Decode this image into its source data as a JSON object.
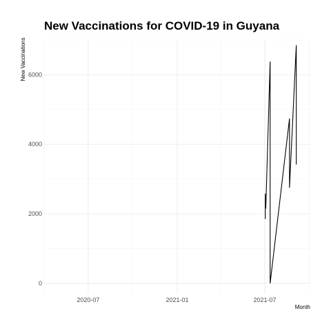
{
  "chart_data": {
    "type": "line",
    "title": "New Vaccinations for COVID-19 in Guyana",
    "xlabel": "Month",
    "ylabel": "New Vaccinations",
    "x_axis_type": "date",
    "xlim": [
      "2020-04-01",
      "2021-10-03"
    ],
    "ylim": [
      -300,
      7000
    ],
    "x_ticks": [
      "2020-07",
      "2021-01",
      "2021-07"
    ],
    "y_ticks": [
      0,
      2000,
      4000,
      6000
    ],
    "grid": true,
    "legend": "none",
    "line_color": "#000000",
    "series": [
      {
        "points": [
          {
            "x": "2021-07-02",
            "y": 1850
          },
          {
            "x": "2021-07-02",
            "y": 2580
          },
          {
            "x": "2021-07-02",
            "y": 2350
          },
          {
            "x": "2021-07-03",
            "y": 2200
          },
          {
            "x": "2021-07-03",
            "y": 2150
          },
          {
            "x": "2021-07-12",
            "y": 6380
          },
          {
            "x": "2021-07-12",
            "y": 0
          },
          {
            "x": "2021-08-21",
            "y": 4740
          },
          {
            "x": "2021-08-21",
            "y": 2750
          },
          {
            "x": "2021-09-04",
            "y": 6850
          },
          {
            "x": "2021-09-04",
            "y": 3420
          }
        ]
      }
    ]
  }
}
